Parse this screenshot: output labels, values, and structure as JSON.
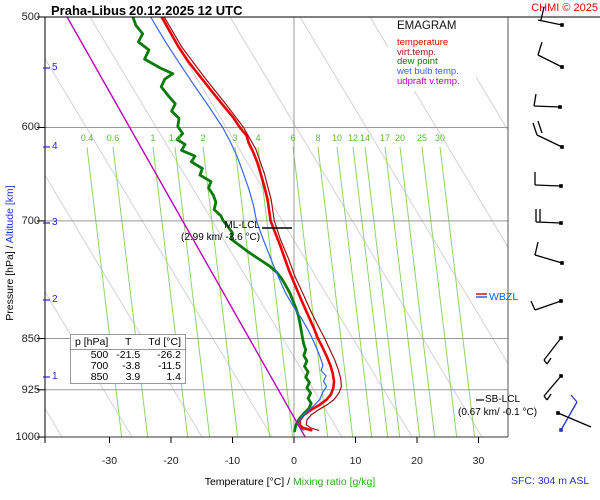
{
  "header": {
    "station": "Praha-Libus",
    "datetime": "20.12.2025 12 UTC",
    "copyright": "CHMI © 2025"
  },
  "legend": {
    "title": "EMAGRAM",
    "items": [
      {
        "label": "temperature",
        "color": "#ee0000"
      },
      {
        "label": "virt.temp.",
        "color": "#991111"
      },
      {
        "label": "dew point",
        "color": "#0a7a0a"
      },
      {
        "label": "wet bulb temp.",
        "color": "#3366ee"
      },
      {
        "label": "udpraft v.temp.",
        "color": "#bb00bb"
      }
    ]
  },
  "axes": {
    "y_caption_pressure": "Pressure [hPa]",
    "y_caption_sep": " / ",
    "y_caption_altitude": "Altitude [km]",
    "x_caption_temp": "Temperature [°C]",
    "x_caption_sep": " / ",
    "x_caption_mix": "Mixing ratio [g/kg]",
    "pressure_ticks": [
      500,
      600,
      700,
      850,
      925,
      1000
    ],
    "altitude_ticks": [
      5,
      4,
      3,
      2,
      1
    ],
    "temp_ticks": [
      -30,
      -20,
      -10,
      0,
      10,
      20,
      30
    ]
  },
  "footer": {
    "surface": "SFC: 304 m ASL"
  },
  "annotations": {
    "ml_lcl_title": "ML-LCL",
    "ml_lcl_detail": "(2.99 km/ -3.6 °C)",
    "sb_lcl_title": "SB-LCL",
    "sb_lcl_detail": "(0.67 km/ -0.1 °C)",
    "wbzl": "WBZL"
  },
  "table": {
    "col_headers": [
      "p [hPa]",
      "T",
      "Td [°C]"
    ],
    "rows": [
      [
        "500",
        "-21.5",
        "-26.2"
      ],
      [
        "700",
        "-3.8",
        "-11.5"
      ],
      [
        "850",
        "3.9",
        "1.4"
      ]
    ]
  },
  "chart_data": {
    "type": "line",
    "title": "EMAGRAM sounding, Praha-Libus 20.12.2025 12 UTC",
    "x_axis": {
      "label": "Temperature [°C]",
      "range": [
        -40,
        35
      ],
      "ticks": [
        -30,
        -20,
        -10,
        0,
        10,
        20,
        30
      ]
    },
    "y_axis": {
      "label": "Pressure [hPa]",
      "range": [
        500,
        1000
      ],
      "scale": "log",
      "ticks": [
        500,
        600,
        700,
        850,
        925,
        1000
      ]
    },
    "altitude_km_ticks": [
      1,
      2,
      3,
      4,
      5
    ],
    "mixing_ratio_gkg": [
      "0.4",
      "0.6",
      "1",
      "1.4",
      "2",
      "3",
      "4",
      "6",
      "8",
      "10",
      "12",
      "14",
      "17",
      "20",
      "25",
      "30"
    ],
    "series": [
      {
        "name": "temperature",
        "color": "#ee0000",
        "width": 2.6,
        "points": [
          [
            500,
            -21.5
          ],
          [
            512,
            -20.2
          ],
          [
            525,
            -18.8
          ],
          [
            538,
            -17.2
          ],
          [
            552,
            -15.2
          ],
          [
            565,
            -13.4
          ],
          [
            578,
            -11.6
          ],
          [
            590,
            -9.9
          ],
          [
            600,
            -8.8
          ],
          [
            608,
            -7.7
          ],
          [
            615,
            -7.4
          ],
          [
            624,
            -6.7
          ],
          [
            635,
            -6.0
          ],
          [
            648,
            -5.4
          ],
          [
            662,
            -4.8
          ],
          [
            676,
            -4.3
          ],
          [
            690,
            -4.0
          ],
          [
            700,
            -3.8
          ],
          [
            715,
            -3.0
          ],
          [
            730,
            -2.2
          ],
          [
            745,
            -1.5
          ],
          [
            760,
            -0.8
          ],
          [
            775,
            0.0
          ],
          [
            790,
            0.8
          ],
          [
            805,
            1.6
          ],
          [
            820,
            2.4
          ],
          [
            835,
            3.2
          ],
          [
            850,
            3.9
          ],
          [
            862,
            4.6
          ],
          [
            875,
            5.3
          ],
          [
            888,
            5.9
          ],
          [
            900,
            6.3
          ],
          [
            912,
            6.5
          ],
          [
            922,
            6.4
          ],
          [
            932,
            6.0
          ],
          [
            940,
            5.3
          ],
          [
            948,
            4.2
          ],
          [
            956,
            2.8
          ],
          [
            964,
            1.6
          ],
          [
            972,
            1.0
          ],
          [
            980,
            0.9
          ],
          [
            985,
            1.5
          ],
          [
            989,
            2.8
          ]
        ]
      },
      {
        "name": "virt.temp.",
        "color": "#991111",
        "width": 1.2,
        "points": [
          [
            500,
            -21.1
          ],
          [
            525,
            -18.3
          ],
          [
            552,
            -14.6
          ],
          [
            578,
            -11.0
          ],
          [
            600,
            -8.2
          ],
          [
            622,
            -6.2
          ],
          [
            648,
            -4.8
          ],
          [
            676,
            -3.7
          ],
          [
            700,
            -3.2
          ],
          [
            722,
            -2.2
          ],
          [
            745,
            -0.9
          ],
          [
            768,
            0.2
          ],
          [
            790,
            1.5
          ],
          [
            812,
            2.7
          ],
          [
            832,
            3.9
          ],
          [
            850,
            5.0
          ],
          [
            865,
            5.8
          ],
          [
            880,
            6.6
          ],
          [
            895,
            7.2
          ],
          [
            908,
            7.6
          ],
          [
            920,
            7.7
          ],
          [
            930,
            7.3
          ],
          [
            940,
            6.5
          ],
          [
            948,
            5.4
          ],
          [
            956,
            4.0
          ],
          [
            964,
            2.8
          ],
          [
            972,
            2.1
          ],
          [
            980,
            2.0
          ],
          [
            985,
            2.7
          ],
          [
            989,
            4.0
          ]
        ]
      },
      {
        "name": "dew point",
        "color": "#0a7a0a",
        "width": 2.8,
        "points": [
          [
            500,
            -26.2
          ],
          [
            507,
            -25.7
          ],
          [
            514,
            -24.6
          ],
          [
            521,
            -25.3
          ],
          [
            528,
            -23.6
          ],
          [
            536,
            -24.3
          ],
          [
            544,
            -21.7
          ],
          [
            549,
            -19.7
          ],
          [
            554,
            -21.0
          ],
          [
            561,
            -21.6
          ],
          [
            569,
            -20.5
          ],
          [
            577,
            -19.3
          ],
          [
            584,
            -19.9
          ],
          [
            591,
            -18.7
          ],
          [
            599,
            -18.9
          ],
          [
            606,
            -18.1
          ],
          [
            612,
            -19.0
          ],
          [
            617,
            -17.7
          ],
          [
            623,
            -18.3
          ],
          [
            629,
            -16.1
          ],
          [
            635,
            -16.7
          ],
          [
            642,
            -14.9
          ],
          [
            649,
            -15.3
          ],
          [
            656,
            -13.5
          ],
          [
            663,
            -13.9
          ],
          [
            671,
            -13.1
          ],
          [
            679,
            -12.7
          ],
          [
            687,
            -13.0
          ],
          [
            694,
            -11.9
          ],
          [
            700,
            -11.5
          ],
          [
            707,
            -10.7
          ],
          [
            714,
            -10.0
          ],
          [
            721,
            -10.3
          ],
          [
            728,
            -9.0
          ],
          [
            737,
            -7.4
          ],
          [
            746,
            -5.6
          ],
          [
            754,
            -4.0
          ],
          [
            762,
            -2.8
          ],
          [
            770,
            -2.0
          ],
          [
            778,
            -1.4
          ],
          [
            788,
            -0.7
          ],
          [
            798,
            -0.2
          ],
          [
            808,
            0.3
          ],
          [
            818,
            0.7
          ],
          [
            830,
            1.0
          ],
          [
            840,
            1.2
          ],
          [
            850,
            1.4
          ],
          [
            858,
            1.6
          ],
          [
            866,
            1.9
          ],
          [
            874,
            1.6
          ],
          [
            882,
            2.1
          ],
          [
            890,
            1.7
          ],
          [
            898,
            2.3
          ],
          [
            906,
            1.9
          ],
          [
            914,
            2.5
          ],
          [
            922,
            2.1
          ],
          [
            930,
            2.7
          ],
          [
            938,
            2.3
          ],
          [
            946,
            2.8
          ],
          [
            954,
            2.4
          ],
          [
            962,
            1.6
          ],
          [
            970,
            0.9
          ],
          [
            978,
            0.4
          ],
          [
            985,
            0.2
          ],
          [
            990,
            0.1
          ]
        ]
      },
      {
        "name": "wet bulb temp.",
        "color": "#3366ee",
        "width": 1.2,
        "points": [
          [
            500,
            -23.3
          ],
          [
            520,
            -21.0
          ],
          [
            540,
            -18.6
          ],
          [
            560,
            -16.2
          ],
          [
            580,
            -13.8
          ],
          [
            600,
            -11.6
          ],
          [
            615,
            -10.3
          ],
          [
            630,
            -9.2
          ],
          [
            648,
            -8.2
          ],
          [
            665,
            -7.3
          ],
          [
            682,
            -6.6
          ],
          [
            700,
            -6.1
          ],
          [
            718,
            -5.2
          ],
          [
            735,
            -4.3
          ],
          [
            752,
            -3.4
          ],
          [
            770,
            -2.4
          ],
          [
            788,
            -1.4
          ],
          [
            805,
            -0.2
          ],
          [
            822,
            1.2
          ],
          [
            838,
            2.3
          ],
          [
            850,
            3.0
          ],
          [
            862,
            3.6
          ],
          [
            875,
            4.2
          ],
          [
            888,
            4.7
          ],
          [
            896,
            4.4
          ],
          [
            904,
            5.2
          ],
          [
            912,
            4.8
          ],
          [
            920,
            5.3
          ],
          [
            930,
            4.6
          ],
          [
            940,
            4.2
          ],
          [
            948,
            3.4
          ],
          [
            956,
            2.4
          ],
          [
            964,
            1.5
          ],
          [
            972,
            1.0
          ],
          [
            980,
            0.8
          ],
          [
            985,
            1.0
          ],
          [
            989,
            1.6
          ]
        ]
      },
      {
        "name": "udpraft v.temp.",
        "color": "#bb00bb",
        "width": 1.4,
        "points": [
          [
            500,
            -36.9
          ],
          [
            1000,
            1.8
          ]
        ]
      }
    ],
    "markers": {
      "ml_lcl": {
        "label": "ML-LCL",
        "height_km": 2.99,
        "temp_c": -3.6
      },
      "sb_lcl": {
        "label": "SB-LCL",
        "height_km": 0.67,
        "temp_c": -0.1
      },
      "wbzl": {
        "label": "WBZL"
      }
    },
    "surface_elevation": "SFC: 304 m ASL"
  },
  "wind_barbs": [
    {
      "name": "wind-barb",
      "color": "#000000",
      "dot": [
        562,
        25
      ],
      "staff": [
        538,
        20
      ],
      "feathers": [
        [
          541,
          20,
          544,
          7
        ]
      ]
    },
    {
      "name": "wind-barb",
      "color": "#000000",
      "dot": [
        562,
        67
      ],
      "staff": [
        538,
        55
      ],
      "feathers": [
        [
          538,
          55,
          542,
          42
        ]
      ]
    },
    {
      "name": "wind-barb",
      "color": "#000000",
      "dot": [
        560,
        107
      ],
      "staff": [
        534,
        106
      ],
      "feathers": [
        [
          534,
          106,
          536,
          94
        ]
      ]
    },
    {
      "name": "wind-barb",
      "color": "#000000",
      "dot": [
        562,
        147
      ],
      "staff": [
        537,
        135
      ],
      "feathers": [
        [
          537,
          135,
          533,
          123
        ],
        [
          542,
          133,
          538,
          121
        ]
      ]
    },
    {
      "name": "wind-barb",
      "color": "#000000",
      "dot": [
        561,
        186
      ],
      "staff": [
        535,
        185
      ],
      "feathers": [
        [
          535,
          185,
          535,
          172
        ]
      ]
    },
    {
      "name": "wind-barb",
      "color": "#000000",
      "dot": [
        561,
        223
      ],
      "staff": [
        536,
        222
      ],
      "feathers": [
        [
          536,
          222,
          536,
          209
        ],
        [
          540,
          222,
          540,
          209
        ]
      ]
    },
    {
      "name": "wind-barb",
      "color": "#000000",
      "dot": [
        562,
        263
      ],
      "staff": [
        535,
        255
      ],
      "feathers": [
        [
          535,
          255,
          538,
          242
        ]
      ]
    },
    {
      "name": "wind-barb",
      "color": "#000000",
      "dot": [
        561,
        301
      ],
      "staff": [
        535,
        310
      ],
      "feathers": [
        [
          535,
          310,
          531,
          301
        ]
      ]
    },
    {
      "name": "wind-barb",
      "color": "#000000",
      "dot": [
        561,
        338
      ],
      "staff": [
        544,
        360
      ],
      "feathers": [
        [
          544,
          360,
          547,
          364
        ],
        [
          547,
          364,
          551,
          358
        ]
      ]
    },
    {
      "name": "wind-barb",
      "color": "#000000",
      "dot": [
        561,
        376
      ],
      "staff": [
        544,
        396
      ],
      "feathers": [
        [
          544,
          396,
          547,
          400
        ],
        [
          547,
          400,
          551,
          394
        ]
      ]
    },
    {
      "name": "wind-barb-surface",
      "color": "#2233cc",
      "dot": [
        561,
        430
      ],
      "staff": [
        577,
        402
      ],
      "feathers": [
        [
          577,
          402,
          571,
          395
        ]
      ]
    },
    {
      "name": "wind-barb",
      "color": "#000000",
      "dot": [
        558,
        413
      ],
      "staff": [
        591,
        427
      ],
      "feathers": []
    }
  ]
}
